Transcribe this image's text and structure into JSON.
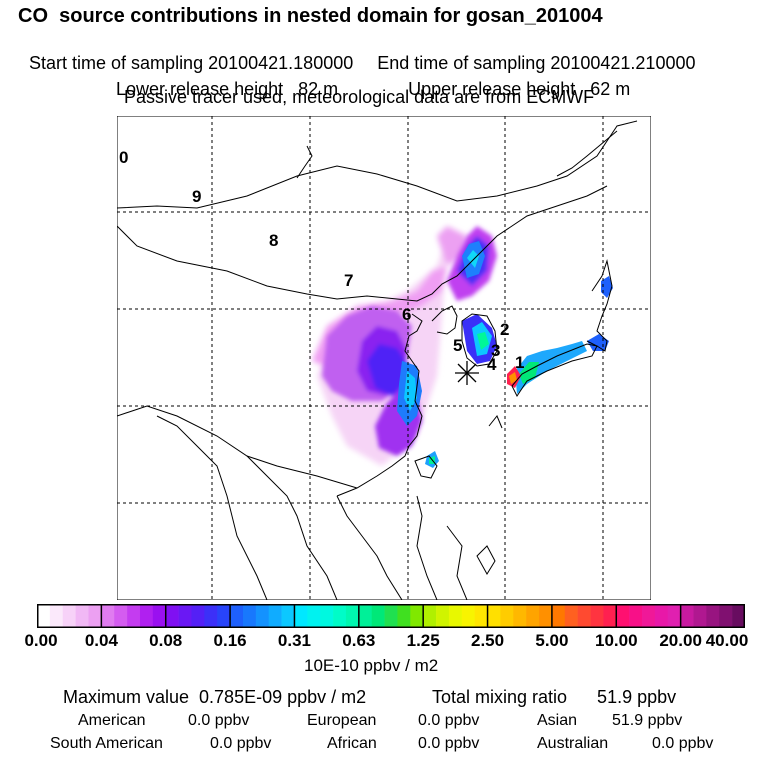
{
  "header": {
    "title": "CO  source contributions in nested domain for gosan_201004",
    "start_time": "Start time of sampling 20100421.180000",
    "end_time": "End time of sampling 20100421.210000",
    "lower_release": "Lower release height   82 m",
    "upper_release": "Upper release height   62 m",
    "tracer_note": "Passive tracer used, meteorological data are from ECMWF"
  },
  "map": {
    "region_labels": [
      "0",
      "9",
      "8",
      "7",
      "6",
      "5",
      "4",
      "3",
      "2",
      "1"
    ],
    "receptor_symbol": "*"
  },
  "colorbar": {
    "tick_labels": [
      "0.00",
      "0.04",
      "0.08",
      "0.16",
      "0.31",
      "0.63",
      "1.25",
      "2.50",
      "5.00",
      "10.00",
      "20.00",
      "40.00"
    ],
    "units": "10E-10 ppbv / m2",
    "colors": [
      [
        "#ffffff",
        "#fbe9fb",
        "#f7d2f8",
        "#f1b8f5",
        "#eca0f2"
      ],
      [
        "#e07cf0",
        "#d45cf0",
        "#c43cf0",
        "#b020f0",
        "#9a10f0"
      ],
      [
        "#8010f2",
        "#6a18f4",
        "#5420f6",
        "#3c30f8",
        "#2844fa"
      ],
      [
        "#1e60fc",
        "#1878fd",
        "#1492fe",
        "#10acff",
        "#0cc8ff"
      ],
      [
        "#00e8ff",
        "#00f2f0",
        "#00f8e0",
        "#00fcc8",
        "#00f8b0"
      ],
      [
        "#00f098",
        "#00e878",
        "#20e050",
        "#40e020",
        "#80e800"
      ],
      [
        "#b0f000",
        "#d0f400",
        "#e8f800",
        "#f8f400",
        "#ffe600"
      ],
      [
        "#ffe000",
        "#ffcc00",
        "#ffb800",
        "#ffa400",
        "#ff9000"
      ],
      [
        "#ff7800",
        "#ff6020",
        "#ff4a30",
        "#ff3440",
        "#ff2050"
      ],
      [
        "#ff1070",
        "#f81088",
        "#f01898",
        "#e818a8",
        "#e020b0"
      ],
      [
        "#c81aa0",
        "#b01890",
        "#981480",
        "#801070",
        "#680c60"
      ]
    ]
  },
  "stats": {
    "maximum_value": "Maximum value  0.785E-09 ppbv / m2",
    "total_mixing_ratio": "Total mixing ratio      51.9 ppbv",
    "contributions": [
      {
        "region": "American",
        "value": "0.0 ppbv"
      },
      {
        "region": "European",
        "value": "0.0 ppbv"
      },
      {
        "region": "Asian",
        "value": "51.9 ppbv"
      },
      {
        "region": "South American",
        "value": "0.0 ppbv"
      },
      {
        "region": "African",
        "value": "0.0 ppbv"
      },
      {
        "region": "Australian",
        "value": "0.0 ppbv"
      }
    ]
  }
}
